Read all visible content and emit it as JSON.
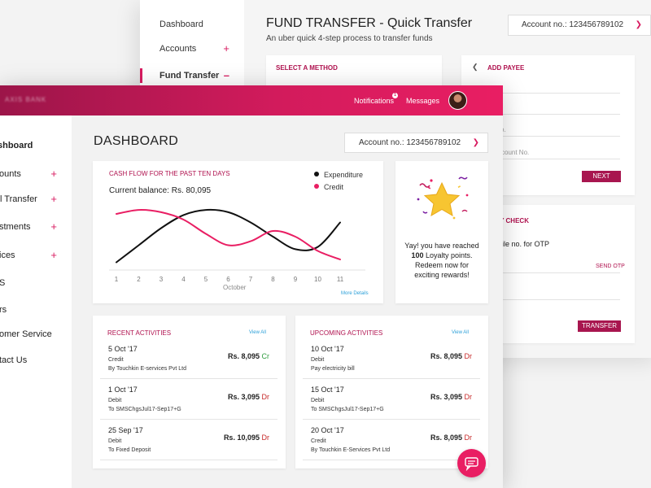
{
  "back": {
    "nav": [
      {
        "label": "Dashboard",
        "plus": ""
      },
      {
        "label": "Accounts",
        "plus": "+"
      },
      {
        "label": "Fund Transfer",
        "plus": "–"
      }
    ],
    "title": "FUND TRANSFER - Quick Transfer",
    "subtitle": "An uber quick 4-step process to transfer funds",
    "account": "Account no.: 123456789102",
    "method_header": "SELECT A METHOD",
    "payee": {
      "header": "ADD PAYEE",
      "hint1": "o.",
      "hint2": "ccount No.",
      "next": "NEXT"
    },
    "otp": {
      "header": "ITY CHECK",
      "mobile_text": "bile no. for OTP",
      "send_otp": "SEND OTP",
      "otp_text": "P",
      "transfer": "TRANSFER"
    }
  },
  "front": {
    "brand": "AXIS BANK",
    "notifications": "Notifications",
    "notif_count": "1",
    "messages": "Messages",
    "nav": [
      {
        "label": "shboard",
        "plus": ""
      },
      {
        "label": "ounts",
        "plus": "+"
      },
      {
        "label": "l Transfer",
        "plus": "+"
      },
      {
        "label": "stments",
        "plus": "+"
      },
      {
        "label": "ices",
        "plus": "+"
      },
      {
        "label": "S",
        "plus": ""
      },
      {
        "label": "rs",
        "plus": ""
      },
      {
        "label": "omer Service",
        "plus": ""
      },
      {
        "label": "tact Us",
        "plus": ""
      }
    ],
    "title": "DASHBOARD",
    "account": "Account no.: 123456789102",
    "cashflow": {
      "header": "CASH FLOW FOR THE PAST TEN DAYS",
      "balance_label": "Current balance:",
      "balance_value": "Rs. 80,095",
      "legend_expenditure": "Expenditure",
      "legend_credit": "Credit",
      "month": "October",
      "more_details": "More Details"
    },
    "loyalty": {
      "line1": "Yay! you have reached",
      "points": "100",
      "line2": " Loyalty points.",
      "line3": "Redeem now for",
      "line4": "exciting rewards!"
    },
    "recent": {
      "header": "RECENT ACTIVITIES",
      "view_all": "View All",
      "items": [
        {
          "date": "5 Oct '17",
          "type": "Credit",
          "desc": "By Touchkin E-services Pvt Ltd",
          "amount": "Rs. 8,095",
          "flag": "Cr"
        },
        {
          "date": "1 Oct '17",
          "type": "Debit",
          "desc": "To SMSChgsJul17-Sep17+G",
          "amount": "Rs. 3,095",
          "flag": "Dr"
        },
        {
          "date": "25 Sep '17",
          "type": "Debit",
          "desc": "To Fixed Deposit",
          "amount": "Rs. 10,095",
          "flag": "Dr"
        }
      ]
    },
    "upcoming": {
      "header": "UPCOMING ACTIVITIES",
      "view_all": "View All",
      "items": [
        {
          "date": "10 Oct '17",
          "type": "Debit",
          "desc": "Pay electricity bill",
          "amount": "Rs. 8,095",
          "flag": "Dr"
        },
        {
          "date": "15 Oct '17",
          "type": "Debit",
          "desc": "To SMSChgsJul17-Sep17+G",
          "amount": "Rs. 3,095",
          "flag": "Dr"
        },
        {
          "date": "20 Oct '17",
          "type": "Credit",
          "desc": "By Touchkin E-Services Pvt Ltd",
          "amount": "Rs. 8,095",
          "flag": "Dr"
        }
      ]
    }
  },
  "chart_data": {
    "type": "line",
    "title": "CASH FLOW FOR THE PAST TEN DAYS",
    "xlabel": "October",
    "x": [
      1,
      2,
      3,
      4,
      5,
      6,
      7,
      8,
      9,
      10,
      11
    ],
    "series": [
      {
        "name": "Expenditure",
        "values": [
          0.05,
          0.35,
          0.65,
          0.88,
          0.97,
          0.93,
          0.75,
          0.5,
          0.28,
          0.32,
          0.75
        ],
        "color": "#111111"
      },
      {
        "name": "Credit",
        "values": [
          0.9,
          0.97,
          0.93,
          0.8,
          0.55,
          0.35,
          0.42,
          0.6,
          0.5,
          0.25,
          0.1
        ],
        "color": "#e91e63"
      }
    ],
    "grid": false,
    "legend": "top-right"
  },
  "colors": {
    "accent": "#e91e63",
    "brand_dark": "#9c1549",
    "link": "#2a9fd8",
    "credit": "#2e9c3e",
    "debit": "#c62828"
  }
}
